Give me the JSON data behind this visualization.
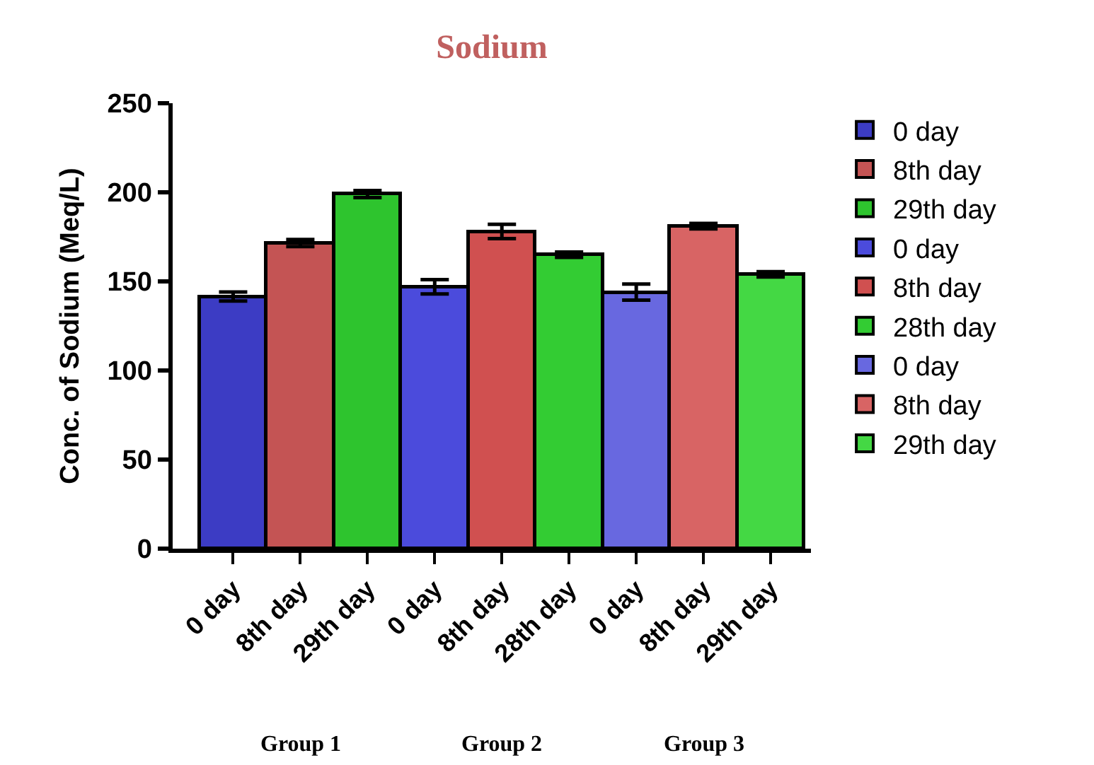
{
  "chart_data": {
    "type": "bar",
    "title": "Sodium",
    "ylabel": "Conc. of Sodium (Meq/L)",
    "categories": [
      "0 day",
      "8th day",
      "29th day",
      "0 day",
      "8th day",
      "28th day",
      "0 day",
      "8th day",
      "29th day"
    ],
    "series": [
      {
        "name": "0 day",
        "color": "#3c3cc4",
        "values": [
          141.5,
          null,
          null,
          null,
          null,
          null,
          null,
          null,
          null
        ],
        "errors": [
          2.5,
          null,
          null,
          null,
          null,
          null,
          null,
          null,
          null
        ]
      },
      {
        "name": "8th day",
        "color": "#c45454",
        "values": [
          null,
          171.5,
          null,
          null,
          null,
          null,
          null,
          null,
          null
        ],
        "errors": [
          null,
          2,
          null,
          null,
          null,
          null,
          null,
          null,
          null
        ]
      },
      {
        "name": "29th day",
        "color": "#2ec42e",
        "values": [
          null,
          null,
          199,
          null,
          null,
          null,
          null,
          null,
          null
        ],
        "errors": [
          null,
          null,
          2,
          null,
          null,
          null,
          null,
          null,
          null
        ]
      },
      {
        "name": "0 day",
        "color": "#4b4bdc",
        "values": [
          null,
          null,
          null,
          147,
          null,
          null,
          null,
          null,
          null
        ],
        "errors": [
          null,
          null,
          null,
          4,
          null,
          null,
          null,
          null,
          null
        ]
      },
      {
        "name": "8th day",
        "color": "#d05050",
        "values": [
          null,
          null,
          null,
          null,
          178,
          null,
          null,
          null,
          null
        ],
        "errors": [
          null,
          null,
          null,
          null,
          4,
          null,
          null,
          null,
          null
        ]
      },
      {
        "name": "28th day",
        "color": "#33cc33",
        "values": [
          null,
          null,
          null,
          null,
          null,
          165,
          null,
          null,
          null
        ],
        "errors": [
          null,
          null,
          null,
          null,
          null,
          1.5,
          null,
          null,
          null
        ]
      },
      {
        "name": "0 day",
        "color": "#6868e0",
        "values": [
          null,
          null,
          null,
          null,
          null,
          null,
          144,
          null,
          null
        ],
        "errors": [
          null,
          null,
          null,
          null,
          null,
          null,
          4.5,
          null,
          null
        ]
      },
      {
        "name": "8th day",
        "color": "#d86464",
        "values": [
          null,
          null,
          null,
          null,
          null,
          null,
          null,
          181,
          null
        ],
        "errors": [
          null,
          null,
          null,
          null,
          null,
          null,
          null,
          1.5,
          null
        ]
      },
      {
        "name": "29th day",
        "color": "#44d844",
        "values": [
          null,
          null,
          null,
          null,
          null,
          null,
          null,
          null,
          154
        ],
        "errors": [
          null,
          null,
          null,
          null,
          null,
          null,
          null,
          null,
          1.5
        ]
      }
    ],
    "annotations": [
      "Group 1",
      "Group 2",
      "Group 3"
    ],
    "ylim": [
      0,
      250
    ],
    "yticks": [
      0,
      50,
      100,
      150,
      200,
      250
    ],
    "legend": "right"
  }
}
